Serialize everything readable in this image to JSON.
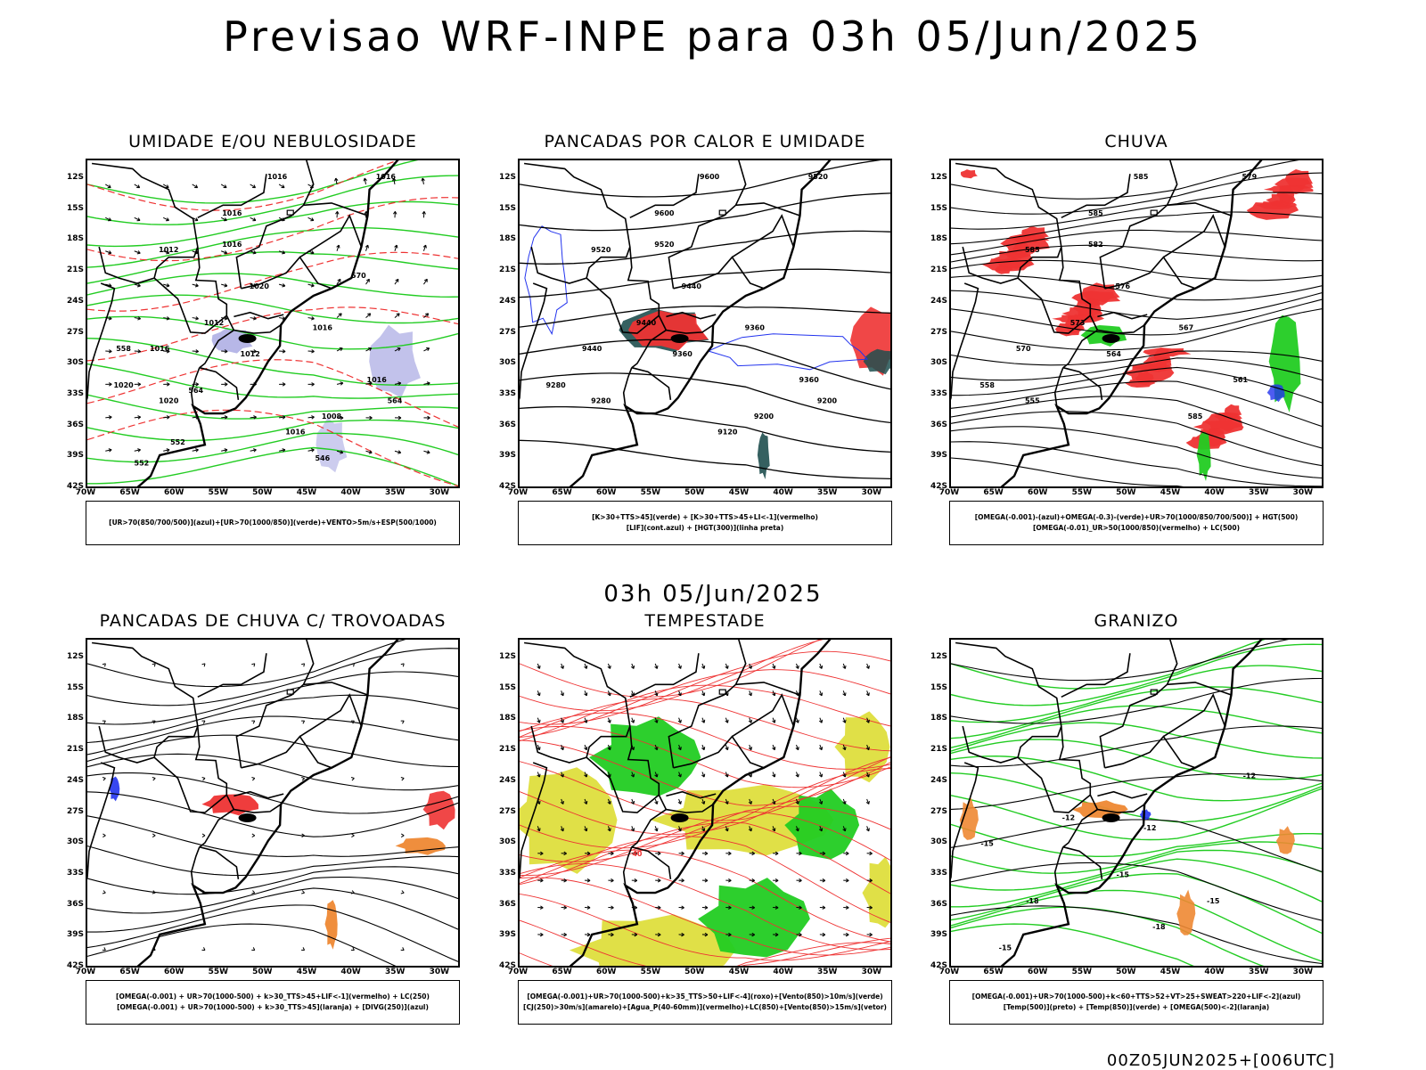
{
  "header": {
    "title": "Previsao WRF-INPE  para 03h 05/Jun/2025",
    "subtitle": "03h 05/Jun/2025",
    "footer": "00Z05JUN2025+[006UTC]"
  },
  "axes": {
    "lat_labels": [
      "12S",
      "15S",
      "18S",
      "21S",
      "24S",
      "27S",
      "30S",
      "33S",
      "36S",
      "39S",
      "42S"
    ],
    "lon_labels": [
      "70W",
      "65W",
      "60W",
      "55W",
      "50W",
      "45W",
      "40W",
      "35W",
      "30W"
    ]
  },
  "colors": {
    "green": "#22cc22",
    "red": "#ee3333",
    "blue": "#2233ee",
    "orange": "#ee8833",
    "yellow": "#dddd33",
    "darkteal": "#1f4f4f",
    "lavender": "#9999dd"
  },
  "panels": [
    {
      "id": "umidade",
      "title": "UMIDADE E/OU NEBULOSIDADE",
      "legend": [
        "[UR>70(850/700/500)](azul)+[UR>70(1000/850)](verde)+VENTO>5m/s+ESP(500/1000)"
      ],
      "contour_labels": [
        "1016",
        "1016",
        "1012",
        "1016",
        "1016",
        "1020",
        "1012",
        "1016",
        "1016",
        "1012",
        "1016",
        "1020",
        "1020",
        "1008",
        "1016",
        "564",
        "558",
        "552",
        "546",
        "570",
        "564",
        "552"
      ]
    },
    {
      "id": "pancadas-calor",
      "title": "PANCADAS POR CALOR E UMIDADE",
      "legend": [
        "[K>30+TTS>45](verde) + [K>30+TTS>45+LI<-1](vermelho)",
        "[LIF](cont.azul) + [HGT(300)](linha preta)"
      ],
      "contour_labels": [
        "9600",
        "9600",
        "9520",
        "9520",
        "9520",
        "9440",
        "9440",
        "9440",
        "9360",
        "9360",
        "9360",
        "9280",
        "9280",
        "9200",
        "9120",
        "9200"
      ]
    },
    {
      "id": "chuva",
      "title": "CHUVA",
      "legend": [
        "[OMEGA(-0.001)-(azul)+OMEGA(-0.3)-(verde)+UR>70(1000/850/700/500)] + HGT(500)",
        "[OMEGA(-0.01)_UR>50(1000/850)(vermelho) + LC(500)"
      ],
      "contour_labels": [
        "585",
        "585",
        "585",
        "582",
        "579",
        "576",
        "573",
        "570",
        "567",
        "564",
        "561",
        "558",
        "555",
        "585"
      ]
    },
    {
      "id": "trovoadas",
      "title": "PANCADAS DE CHUVA C/ TROVOADAS",
      "legend": [
        "[OMEGA(-0.001) + UR>70(1000-500) + k>30_TTS>45+LIF<-1](vermelho) + LC(250)",
        "[OMEGA(-0.001) + UR>70(1000-500) + k>30_TTS>45](laranja) + [DIVG(250)](azul)"
      ],
      "contour_labels": []
    },
    {
      "id": "tempestade",
      "title": "TEMPESTADE",
      "legend": [
        "[OMEGA(-0.001)+UR>70(1000-500)+k>35_TTS>50+LIF<-4](roxo)+[Vento(850)>10m/s](verde)",
        "[CJ(250)>30m/s](amarelo)+[Agua_P(40-60mm)](vermelho)+LC(850)+[Vento(850)>15m/s](vetor)"
      ],
      "contour_labels": [
        "40"
      ]
    },
    {
      "id": "granizo",
      "title": "GRANIZO",
      "legend": [
        "[OMEGA(-0.001)+UR>70(1000-500)+k<60+TTS>52+VT>25+SWEAT>220+LIF<-2](azul)",
        "[Temp(500)](preto) + [Temp(850)](verde) + [OMEGA(500)<-2](laranja)"
      ],
      "contour_labels": [
        "-12",
        "-12",
        "-12",
        "-15",
        "-15",
        "-15",
        "-18",
        "-18",
        "-15"
      ]
    }
  ]
}
